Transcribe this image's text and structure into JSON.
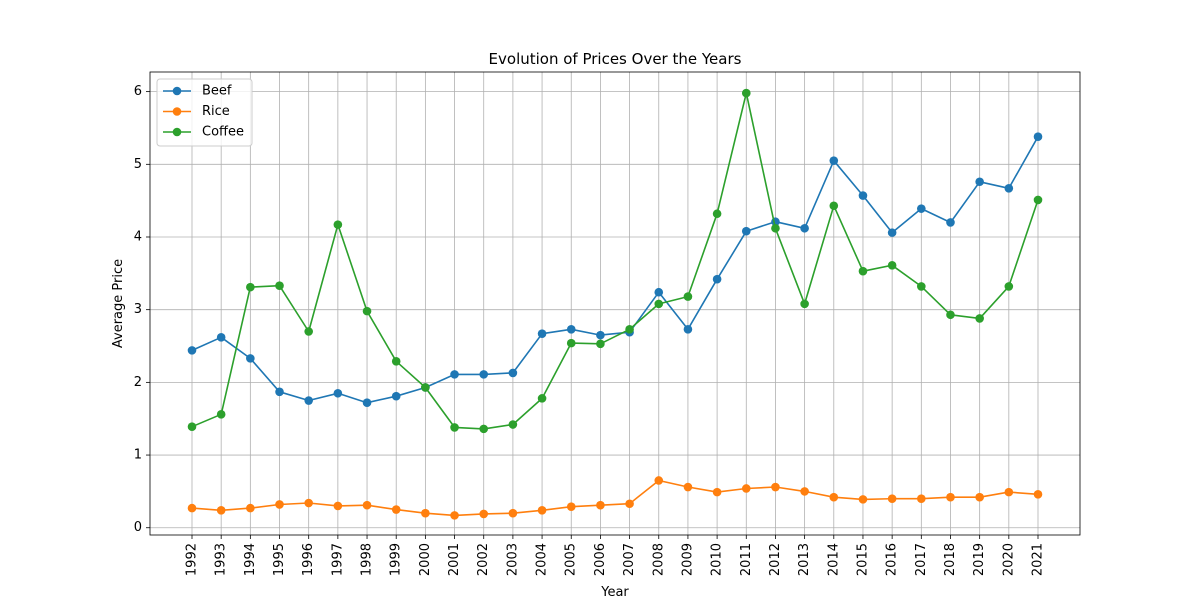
{
  "chart_data": {
    "type": "line",
    "title": "Evolution of Prices Over the Years",
    "xlabel": "Year",
    "ylabel": "Average Price",
    "ylim": [
      -0.1,
      6.27
    ],
    "yticks": [
      "0",
      "1",
      "2",
      "3",
      "4",
      "5",
      "6"
    ],
    "grid": true,
    "legend_position": "top-left",
    "x": [
      "1992",
      "1993",
      "1994",
      "1995",
      "1996",
      "1997",
      "1998",
      "1999",
      "2000",
      "2001",
      "2002",
      "2003",
      "2004",
      "2005",
      "2006",
      "2007",
      "2008",
      "2009",
      "2010",
      "2011",
      "2012",
      "2013",
      "2014",
      "2015",
      "2016",
      "2017",
      "2018",
      "2019",
      "2020",
      "2021"
    ],
    "series": [
      {
        "name": "Beef",
        "color": "#1f77b4",
        "values": [
          2.44,
          2.62,
          2.33,
          1.87,
          1.75,
          1.85,
          1.72,
          1.81,
          1.93,
          2.11,
          2.11,
          2.13,
          2.67,
          2.73,
          2.65,
          2.69,
          3.24,
          2.73,
          3.42,
          4.08,
          4.21,
          4.12,
          5.05,
          4.57,
          4.06,
          4.39,
          4.2,
          4.76,
          4.67,
          5.38
        ]
      },
      {
        "name": "Rice",
        "color": "#ff7f0e",
        "values": [
          0.27,
          0.24,
          0.27,
          0.32,
          0.34,
          0.3,
          0.31,
          0.25,
          0.2,
          0.17,
          0.19,
          0.2,
          0.24,
          0.29,
          0.31,
          0.33,
          0.65,
          0.56,
          0.49,
          0.54,
          0.56,
          0.5,
          0.42,
          0.39,
          0.4,
          0.4,
          0.42,
          0.42,
          0.49,
          0.46
        ]
      },
      {
        "name": "Coffee",
        "color": "#2ca02c",
        "values": [
          1.39,
          1.56,
          3.31,
          3.33,
          2.7,
          4.17,
          2.98,
          2.29,
          1.93,
          1.38,
          1.36,
          1.42,
          1.78,
          2.54,
          2.53,
          2.73,
          3.08,
          3.18,
          4.32,
          5.98,
          4.12,
          3.08,
          4.43,
          3.53,
          3.61,
          3.32,
          2.93,
          2.88,
          3.32,
          4.51
        ]
      }
    ]
  }
}
